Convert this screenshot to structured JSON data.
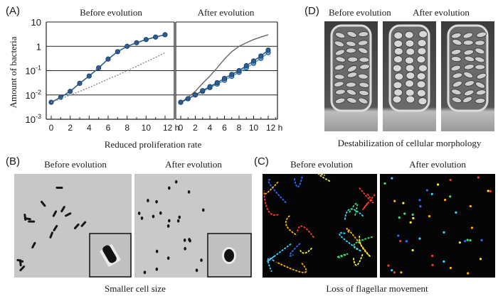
{
  "panel_a": {
    "label": "(A)",
    "titles": [
      "Before evolution",
      "After evolution"
    ],
    "ylabel": "Amount of bacteria",
    "xlabel": "Reduced proliferation rate",
    "y_tick_labels": [
      {
        "base": "10",
        "exp": "-3"
      },
      {
        "base": "10",
        "exp": "-2"
      },
      {
        "base": "10",
        "exp": "-1"
      },
      {
        "base": "1",
        "exp": ""
      },
      {
        "base": "10",
        "exp": ""
      }
    ],
    "x_tick_labels": [
      "0",
      "2",
      "4",
      "6",
      "8",
      "10",
      "12 h"
    ]
  },
  "chart_data": {
    "type": "line",
    "title": "",
    "xlabel": "Reduced proliferation rate",
    "ylabel": "Amount of bacteria",
    "yscale": "log",
    "ylim": [
      0.001,
      10
    ],
    "xlim": [
      0,
      13
    ],
    "grid": "horizontal",
    "panels": [
      {
        "title": "Before evolution",
        "series": [
          {
            "style": "dark-blue circles",
            "color": "#2b5d91",
            "x": [
              0,
              1,
              2,
              3,
              4,
              5,
              6,
              7,
              8,
              9,
              10,
              11,
              12
            ],
            "y": [
              0.005,
              0.008,
              0.014,
              0.03,
              0.06,
              0.13,
              0.3,
              0.6,
              1.0,
              1.4,
              1.9,
              2.4,
              3.0
            ]
          },
          {
            "style": "dotted gray",
            "color": "#888888",
            "x": [
              0,
              1,
              2,
              3,
              4,
              5,
              6,
              7,
              8,
              9,
              10,
              11,
              12
            ],
            "y": [
              0.005,
              0.007,
              0.01,
              0.014,
              0.02,
              0.03,
              0.045,
              0.065,
              0.1,
              0.15,
              0.23,
              0.35,
              0.55
            ]
          }
        ]
      },
      {
        "title": "After evolution",
        "series": [
          {
            "style": "gray solid",
            "color": "#666666",
            "x": [
              0,
              1,
              2,
              3,
              4,
              5,
              6,
              7,
              8,
              9,
              10,
              11,
              12
            ],
            "y": [
              0.005,
              0.008,
              0.014,
              0.03,
              0.06,
              0.13,
              0.3,
              0.6,
              1.0,
              1.4,
              1.9,
              2.4,
              3.0
            ]
          },
          {
            "style": "light-blue circles",
            "color": "#5aa0d8",
            "x": [
              0,
              1,
              2,
              3,
              4,
              5,
              6,
              7,
              8,
              9,
              10,
              11,
              12
            ],
            "y": [
              0.005,
              0.007,
              0.01,
              0.014,
              0.02,
              0.028,
              0.04,
              0.058,
              0.085,
              0.13,
              0.2,
              0.32,
              0.55
            ]
          },
          {
            "style": "dark-blue circles",
            "color": "#2b5d91",
            "x": [
              0,
              1,
              2,
              3,
              4,
              5,
              6,
              7,
              8,
              9,
              10,
              11,
              12
            ],
            "y": [
              0.005,
              0.007,
              0.01,
              0.015,
              0.022,
              0.032,
              0.048,
              0.07,
              0.1,
              0.16,
              0.25,
              0.4,
              0.7
            ]
          }
        ]
      }
    ]
  },
  "panel_b": {
    "label": "(B)",
    "titles": [
      "Before evolution",
      "After evolution"
    ],
    "caption": "Smaller cell size"
  },
  "panel_c": {
    "label": "(C)",
    "titles": [
      "Before evolution",
      "After evolution"
    ],
    "caption": "Loss of flagellar movement"
  },
  "panel_d": {
    "label": "(D)",
    "titles": [
      "Before evolution",
      "After evolution"
    ],
    "caption": "Destabilization of cellular morphology"
  },
  "colors": {
    "dark_series": "#2b5d91",
    "light_series": "#5aa0d8",
    "grid": "#222222",
    "micrograph_bg": "#c4c4c4"
  }
}
